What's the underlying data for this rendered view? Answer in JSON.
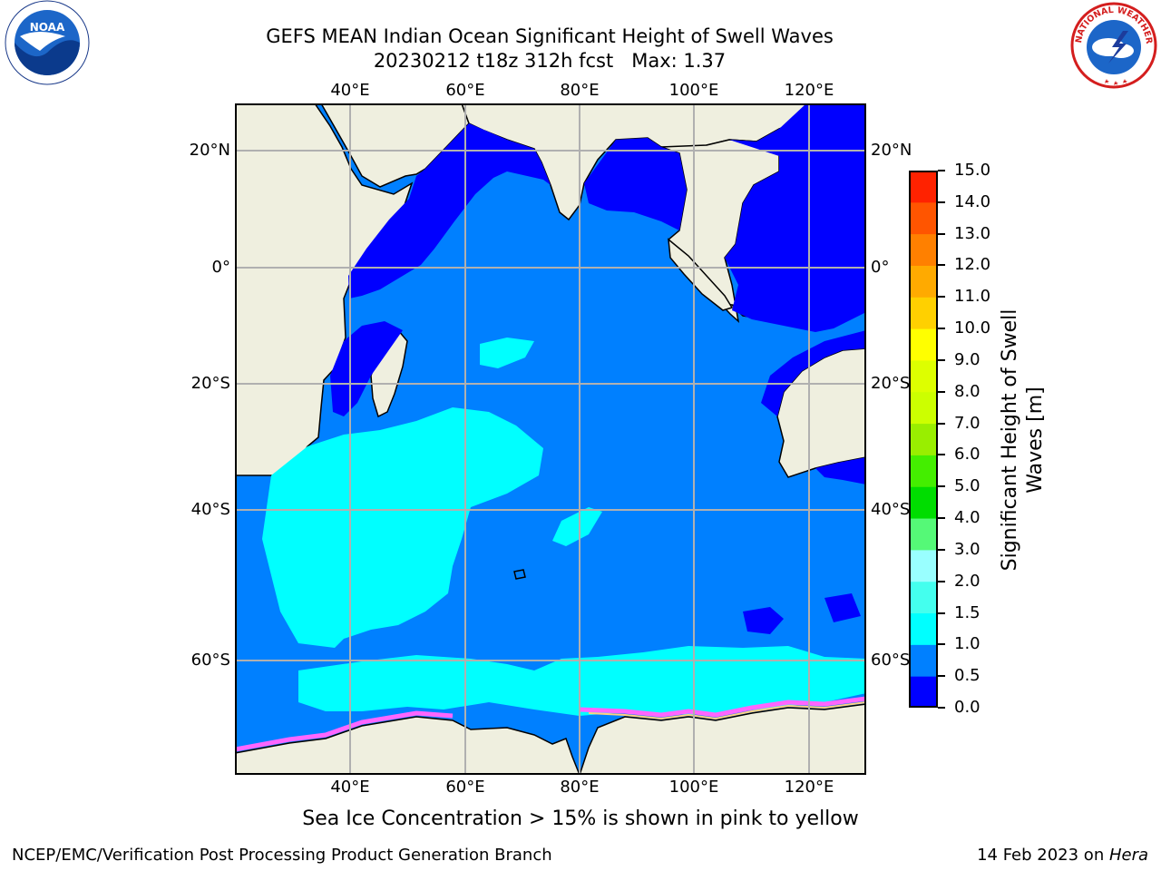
{
  "header": {
    "title_line1": "GEFS MEAN Indian Ocean Significant Height of Swell Waves",
    "title_line2": "20230212 t18z 312h fcst   Max: 1.37"
  },
  "map": {
    "lon_ticks": [
      "40°E",
      "60°E",
      "80°E",
      "100°E",
      "120°E"
    ],
    "lat_ticks": [
      "20°N",
      "0°",
      "20°S",
      "40°S",
      "60°S"
    ],
    "colors": {
      "land": "#efefdf",
      "ocean_0_0.5": "#0000ff",
      "ocean_0.5_1.0": "#0080ff",
      "ocean_1.0_1.5": "#00ffff",
      "sea_ice": "#ff66ff"
    }
  },
  "colorbar": {
    "title": "Significant Height of Swell Waves [m]",
    "labels": [
      "0.0",
      "0.5",
      "1.0",
      "1.5",
      "2.0",
      "3.0",
      "4.0",
      "5.0",
      "6.0",
      "7.0",
      "8.0",
      "9.0",
      "10.0",
      "11.0",
      "12.0",
      "13.0",
      "14.0",
      "15.0"
    ],
    "colors": [
      "#0000ff",
      "#0080ff",
      "#00ffff",
      "#44ffee",
      "#99ffff",
      "#55f977",
      "#00dd00",
      "#44ee00",
      "#99ee00",
      "#ccff00",
      "#ddff00",
      "#ffff00",
      "#ffd000",
      "#ffaa00",
      "#ff8000",
      "#ff5500",
      "#ff2200",
      "#ff0000"
    ]
  },
  "subtitle": "Sea Ice Concentration > 15% is shown in pink to yellow",
  "footer": {
    "left": "NCEP/EMC/Verification Post Processing Product Generation Branch",
    "right_prefix": "14 Feb 2023 on ",
    "right_italic": "Hera"
  },
  "logos": {
    "noaa_text": "NOAA",
    "nws_text": "NATIONAL WEATHER SERVICE"
  }
}
